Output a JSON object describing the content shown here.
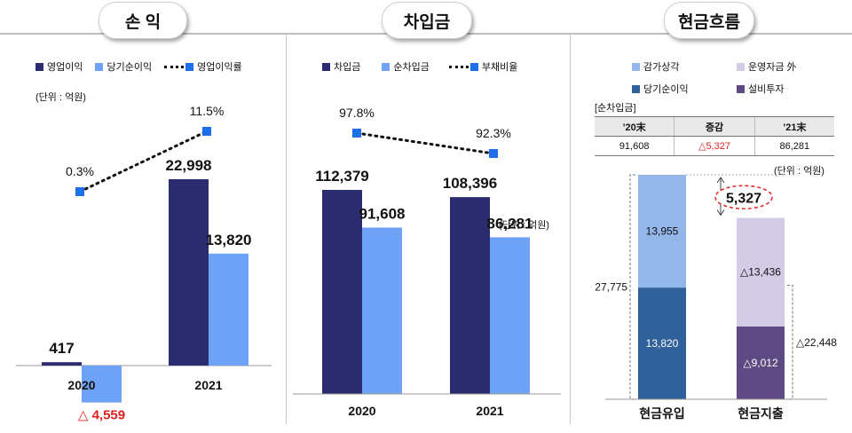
{
  "panels": {
    "profit": {
      "title": "손 익",
      "unit": "(단위 : 억원)",
      "legend": {
        "bar1": "영업이익",
        "bar2": "당기순이익",
        "line": "영업이익률"
      }
    },
    "borrow": {
      "title": "차입금",
      "unit": "(단위 : 억원)",
      "legend": {
        "bar1": "차입금",
        "bar2": "순차입금",
        "line": "부채비율"
      }
    },
    "cash": {
      "title": "현금흐름",
      "unit": "(단위 : 억원)",
      "legend": {
        "a": "감가상각",
        "b": "운영자금 外",
        "c": "당기순이익",
        "d": "설비투자"
      },
      "table": {
        "caption": "[순차입금]",
        "headers": [
          "’20末",
          "증감",
          "’21末"
        ],
        "values": [
          "91,608",
          "△5,327",
          "86,281"
        ]
      }
    }
  },
  "colors": {
    "navy": "#2b2c6f",
    "lightblue": "#6ea2f7",
    "line_marker": "#1f6fe8",
    "negative": "#e02020",
    "cf_light": "#93b7e9",
    "cf_dark": "#31619b",
    "cf_lavender": "#d4cbe6",
    "cf_purple": "#5e4a82"
  },
  "chart_data": [
    {
      "type": "bar",
      "title": "손 익",
      "categories": [
        "2020",
        "2021"
      ],
      "series": [
        {
          "name": "영업이익",
          "values": [
            417,
            22998
          ],
          "labels": [
            "417",
            "22,998"
          ]
        },
        {
          "name": "당기순이익",
          "values": [
            -4559,
            13820
          ],
          "labels": [
            "△ 4,559",
            "13,820"
          ]
        },
        {
          "name": "영업이익률",
          "kind": "line",
          "values": [
            0.3,
            11.5
          ],
          "labels": [
            "0.3%",
            "11.5%"
          ]
        }
      ]
    },
    {
      "type": "bar",
      "title": "차입금",
      "categories": [
        "2020",
        "2021"
      ],
      "series": [
        {
          "name": "차입금",
          "values": [
            112379,
            108396
          ],
          "labels": [
            "112,379",
            "108,396"
          ]
        },
        {
          "name": "순차입금",
          "values": [
            91608,
            86281
          ],
          "labels": [
            "91,608",
            "86,281"
          ]
        },
        {
          "name": "부채비율",
          "kind": "line",
          "values": [
            97.8,
            92.3
          ],
          "labels": [
            "97.8%",
            "92.3%"
          ]
        }
      ]
    },
    {
      "type": "bar",
      "title": "현금흐름",
      "stacked": true,
      "categories": [
        "현금유입",
        "현금지출"
      ],
      "series": [
        {
          "name": "당기순이익",
          "category": "현금유입",
          "value": 13820,
          "label": "13,820"
        },
        {
          "name": "감가상각",
          "category": "현금유입",
          "value": 13955,
          "label": "13,955"
        },
        {
          "name": "설비투자",
          "category": "현금지출",
          "value": 9012,
          "label": "△9,012"
        },
        {
          "name": "운영자금 外",
          "category": "현금지출",
          "value": 13436,
          "label": "△13,436"
        }
      ],
      "totals": {
        "inflow": "27,775",
        "outflow": "△22,448",
        "difference": "5,327"
      }
    }
  ]
}
